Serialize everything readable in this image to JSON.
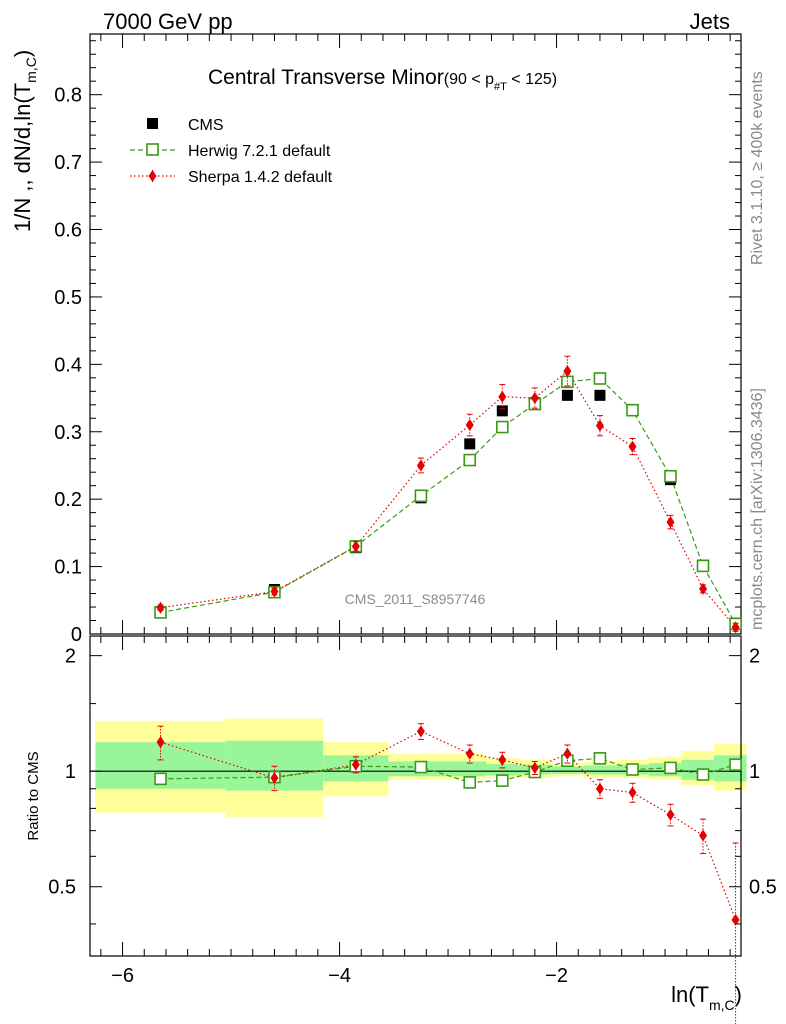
{
  "header": {
    "left": "7000 GeV pp",
    "right": "Jets"
  },
  "side_text": {
    "rivet": "Rivet 3.1.10, ≥ 400k events",
    "mcplots": "mcplots.cern.ch [arXiv:1306.3436]"
  },
  "chart_data": [
    {
      "type": "scatter",
      "title": "Central Transverse Minor",
      "title_suffix": "(90 < p",
      "title_sub": "#T",
      "title_end": " < 125)",
      "ylabel": "1/N ,, dN/d,ln(T",
      "ylabel_sub": "m,C",
      "ylabel_end": ")",
      "watermark": "CMS_2011_S8957746",
      "xlim": [
        -6.3,
        -0.3
      ],
      "ylim": [
        0,
        0.89
      ],
      "y_ticks": [
        0,
        0.1,
        0.2,
        0.3,
        0.4,
        0.5,
        0.6,
        0.7,
        0.8
      ],
      "y_tick_labels": [
        "0",
        "0.1",
        "0.2",
        "0.3",
        "0.4",
        "0.5",
        "0.6",
        "0.7",
        "0.8"
      ],
      "legend_position": "top-left",
      "legend": [
        "CMS",
        "Herwig 7.2.1 default",
        "Sherpa 1.4.2 default"
      ],
      "colors": {
        "cms": "#000000",
        "herwig": "#3a9a14",
        "sherpa": "#e30000"
      },
      "series": [
        {
          "name": "CMS",
          "x": [
            -5.65,
            -4.6,
            -3.85,
            -3.25,
            -2.8,
            -2.5,
            -2.2,
            -1.9,
            -1.6,
            -1.3,
            -0.95,
            -0.65,
            -0.35
          ],
          "y": [
            0.033,
            0.066,
            0.128,
            0.202,
            0.282,
            0.331,
            0.343,
            0.354,
            0.354,
            0.333,
            0.229,
            0.102,
            0.016
          ]
        },
        {
          "name": "Herwig 7.2.1 default",
          "x": [
            -5.65,
            -4.6,
            -3.85,
            -3.25,
            -2.8,
            -2.5,
            -2.2,
            -1.9,
            -1.6,
            -1.3,
            -0.95,
            -0.65,
            -0.35
          ],
          "y": [
            0.032,
            0.062,
            0.13,
            0.205,
            0.258,
            0.307,
            0.341,
            0.374,
            0.379,
            0.332,
            0.234,
            0.101,
            0.015
          ]
        },
        {
          "name": "Sherpa 1.4.2 default",
          "x": [
            -5.65,
            -4.6,
            -3.85,
            -3.25,
            -2.8,
            -2.5,
            -2.2,
            -1.9,
            -1.6,
            -1.3,
            -0.95,
            -0.65,
            -0.35
          ],
          "y": [
            0.039,
            0.063,
            0.13,
            0.25,
            0.31,
            0.352,
            0.35,
            0.39,
            0.309,
            0.278,
            0.166,
            0.067,
            0.01
          ],
          "yerr": [
            0.004,
            0.005,
            0.007,
            0.011,
            0.016,
            0.018,
            0.015,
            0.022,
            0.015,
            0.012,
            0.01,
            0.006,
            0.006
          ]
        }
      ]
    },
    {
      "type": "scatter",
      "ylabel": "Ratio to CMS",
      "xlabel": "ln(T",
      "xlabel_sub": "m,C",
      "xlabel_end": ")",
      "xlim": [
        -6.3,
        -0.3
      ],
      "ylim": [
        0.33,
        2.25
      ],
      "x_ticks": [
        -6,
        -4,
        -2
      ],
      "x_tick_labels": [
        "−6",
        "−4",
        "−2"
      ],
      "y_ticks": [
        0.5,
        1,
        2
      ],
      "y_tick_labels": [
        "0.5",
        "1",
        "2"
      ],
      "bands": {
        "edges": [
          -6.25,
          -5.05,
          -4.15,
          -3.55,
          -2.65,
          -2.35,
          -2.05,
          -1.75,
          -1.45,
          -1.15,
          -0.85,
          -0.55,
          -0.25
        ],
        "yellow_low": [
          0.78,
          0.76,
          0.86,
          0.95,
          0.96,
          0.96,
          0.97,
          0.96,
          0.96,
          0.95,
          0.92,
          0.89,
          0.83
        ],
        "yellow_high": [
          1.35,
          1.37,
          1.19,
          1.11,
          1.08,
          1.07,
          1.05,
          1.06,
          1.07,
          1.09,
          1.13,
          1.18,
          1.27
        ],
        "green_low": [
          0.9,
          0.89,
          0.94,
          0.97,
          0.975,
          0.98,
          0.985,
          0.98,
          0.98,
          0.97,
          0.95,
          0.94,
          0.91
        ],
        "green_high": [
          1.19,
          1.2,
          1.1,
          1.06,
          1.045,
          1.04,
          1.03,
          1.035,
          1.04,
          1.05,
          1.07,
          1.1,
          1.16
        ]
      },
      "series": [
        {
          "name": "Herwig 7.2.1 default",
          "x": [
            -5.65,
            -4.6,
            -3.85,
            -3.25,
            -2.8,
            -2.5,
            -2.2,
            -1.9,
            -1.6,
            -1.3,
            -0.95,
            -0.65,
            -0.35
          ],
          "y": [
            0.955,
            0.965,
            1.03,
            1.025,
            0.935,
            0.945,
            0.995,
            1.065,
            1.08,
            1.01,
            1.02,
            0.98,
            1.04
          ]
        },
        {
          "name": "Sherpa 1.4.2 default",
          "x": [
            -5.65,
            -4.6,
            -3.85,
            -3.25,
            -2.8,
            -2.5,
            -2.2,
            -1.9,
            -1.6,
            -1.3,
            -0.95,
            -0.65,
            -0.35
          ],
          "y": [
            1.19,
            0.96,
            1.04,
            1.27,
            1.11,
            1.07,
            1.02,
            1.11,
            0.9,
            0.88,
            0.77,
            0.68,
            0.41
          ],
          "yerr": [
            0.12,
            0.07,
            0.05,
            0.06,
            0.06,
            0.05,
            0.04,
            0.06,
            0.05,
            0.05,
            0.05,
            0.07,
            0.24
          ]
        }
      ]
    }
  ]
}
